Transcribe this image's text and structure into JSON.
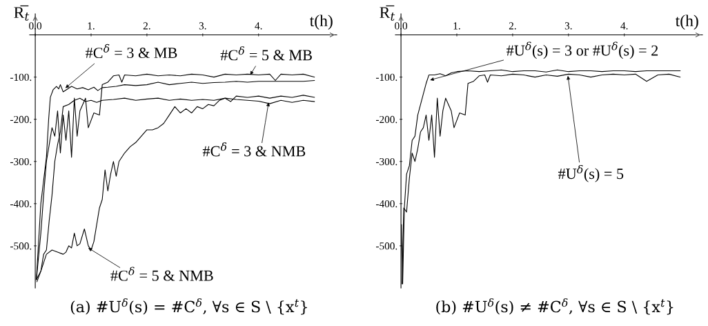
{
  "chart_data": [
    {
      "type": "line",
      "title": "(a) #U$^{δ}$(s) = #C$^{δ}$, ∀s ∈ S \\ {x$^{t}$}",
      "xlabel": "t(h)",
      "ylabel": "R̅$_{t}$",
      "xlim": [
        -0.1,
        5.4
      ],
      "ylim": [
        -600,
        50
      ],
      "xticks": [
        {
          "value": 0,
          "label": "0.0"
        },
        {
          "value": 1,
          "label": "1."
        },
        {
          "value": 2,
          "label": "2."
        },
        {
          "value": 3,
          "label": "3."
        },
        {
          "value": 4,
          "label": "4."
        }
      ],
      "yticks": [
        {
          "value": -100,
          "label": "-100."
        },
        {
          "value": -200,
          "label": "-200."
        },
        {
          "value": -300,
          "label": "-300."
        },
        {
          "value": -400,
          "label": "-400."
        },
        {
          "value": -500,
          "label": "-500."
        }
      ],
      "series": [
        {
          "color": "#000000",
          "x": [
            0.02,
            0.1,
            0.2,
            0.24,
            0.27,
            0.32,
            0.38,
            0.42,
            0.45,
            0.5,
            0.58,
            0.65,
            0.75,
            0.85,
            0.95,
            1.05,
            1.12,
            1.2,
            1.3,
            1.45,
            1.6,
            1.8,
            2.0,
            2.2,
            2.4,
            2.6,
            2.8,
            3.0,
            3.2,
            3.4,
            3.6,
            3.8,
            4.0,
            4.2,
            4.5,
            4.8,
            5.0
          ],
          "values": [
            -580,
            -400,
            -290,
            -200,
            -148,
            -130,
            -122,
            -128,
            -118,
            -135,
            -128,
            -122,
            -128,
            -125,
            -130,
            -124,
            -132,
            -125,
            -124,
            -122,
            -118,
            -120,
            -118,
            -112,
            -118,
            -115,
            -112,
            -115,
            -113,
            -112,
            -110,
            -112,
            -110,
            -110,
            -110,
            -110,
            -108
          ]
        },
        {
          "color": "#000000",
          "x": [
            0.02,
            0.1,
            0.15,
            0.2,
            0.25,
            0.3,
            0.35,
            0.4,
            0.45,
            0.5,
            0.55,
            0.6,
            0.65,
            0.7,
            0.75,
            0.8,
            0.9,
            0.95,
            1.05,
            1.15,
            1.2,
            1.3,
            1.4,
            1.5,
            1.55,
            1.6,
            1.8,
            2.0,
            2.2,
            2.4,
            2.6,
            2.8,
            3.0,
            3.2,
            3.4,
            3.6,
            3.8,
            4.0,
            4.2,
            4.3,
            4.4,
            4.6,
            4.8,
            5.0
          ],
          "values": [
            -580,
            -470,
            -380,
            -300,
            -260,
            -220,
            -240,
            -180,
            -280,
            -190,
            -250,
            -180,
            -290,
            -150,
            -240,
            -180,
            -150,
            -220,
            -185,
            -190,
            -118,
            -112,
            -97,
            -95,
            -112,
            -95,
            -97,
            -93,
            -97,
            -95,
            -97,
            -93,
            -95,
            -100,
            -93,
            -95,
            -93,
            -95,
            -93,
            -108,
            -93,
            -95,
            -93,
            -100
          ]
        },
        {
          "color": "#000000",
          "x": [
            0.02,
            0.1,
            0.15,
            0.2,
            0.25,
            0.3,
            0.35,
            0.4,
            0.45,
            0.5,
            0.6,
            0.7,
            0.8,
            0.9,
            1.0,
            1.1,
            1.2,
            1.4,
            1.6,
            1.8,
            2.0,
            2.2,
            2.4,
            2.6,
            2.8,
            3.0,
            3.2,
            3.4,
            3.6,
            3.8,
            4.0,
            4.2,
            4.4,
            4.6,
            4.8,
            5.0
          ],
          "values": [
            -580,
            -560,
            -520,
            -510,
            -440,
            -380,
            -300,
            -260,
            -230,
            -170,
            -165,
            -155,
            -150,
            -158,
            -155,
            -160,
            -155,
            -153,
            -150,
            -155,
            -152,
            -150,
            -155,
            -152,
            -155,
            -153,
            -155,
            -150,
            -153,
            -155,
            -157,
            -163,
            -155,
            -160,
            -155,
            -158
          ]
        },
        {
          "color": "#000000",
          "x": [
            0.03,
            0.1,
            0.2,
            0.3,
            0.4,
            0.5,
            0.55,
            0.6,
            0.65,
            0.7,
            0.75,
            0.8,
            0.88,
            0.95,
            1.0,
            1.05,
            1.1,
            1.15,
            1.2,
            1.25,
            1.3,
            1.35,
            1.4,
            1.45,
            1.5,
            1.6,
            1.7,
            1.8,
            1.9,
            2.0,
            2.1,
            2.2,
            2.3,
            2.4,
            2.5,
            2.6,
            2.7,
            2.8,
            2.9,
            3.0,
            3.1,
            3.2,
            3.3,
            3.4,
            3.5,
            3.6,
            3.8,
            4.0,
            4.2,
            4.4,
            4.6,
            4.8,
            5.0
          ],
          "values": [
            -585,
            -560,
            -520,
            -510,
            -515,
            -520,
            -515,
            -500,
            -505,
            -470,
            -500,
            -495,
            -460,
            -500,
            -510,
            -490,
            -450,
            -410,
            -390,
            -320,
            -370,
            -330,
            -300,
            -335,
            -300,
            -280,
            -265,
            -255,
            -240,
            -225,
            -225,
            -220,
            -210,
            -190,
            -170,
            -185,
            -175,
            -185,
            -170,
            -175,
            -165,
            -168,
            -155,
            -150,
            -158,
            -145,
            -148,
            -145,
            -150,
            -145,
            -148,
            -143,
            -148
          ]
        }
      ],
      "annotations": [
        {
          "text": "#C$^{δ}$ = 3 & MB",
          "x": 0.54,
          "y": -126
        },
        {
          "text": "#C$^{δ}$ = 5 & MB",
          "x": 3.85,
          "y": -95
        },
        {
          "text": "#C$^{δ}$ = 3 & NMB",
          "x": 4.18,
          "y": -160
        },
        {
          "text": "#C$^{δ}$ = 5 & NMB",
          "x": 0.95,
          "y": -505
        }
      ]
    },
    {
      "type": "line",
      "title": "(b) #U$^{δ}$(s) ≠ #C$^{δ}$, ∀s ∈ S \\ {x$^{t}$}",
      "xlabel": "t(h)",
      "ylabel": "R̅$_{t}$",
      "xlim": [
        -0.1,
        5.4
      ],
      "ylim": [
        -600,
        50
      ],
      "xticks": [
        {
          "value": 0,
          "label": "0.0"
        },
        {
          "value": 1,
          "label": "1."
        },
        {
          "value": 2,
          "label": "2."
        },
        {
          "value": 3,
          "label": "3."
        },
        {
          "value": 4,
          "label": "4."
        }
      ],
      "yticks": [
        {
          "value": -100,
          "label": "-100."
        },
        {
          "value": -200,
          "label": "-200."
        },
        {
          "value": -300,
          "label": "-300."
        },
        {
          "value": -400,
          "label": "-400."
        },
        {
          "value": -500,
          "label": "-500."
        }
      ],
      "series": [
        {
          "color": "#000000",
          "x": [
            0.01,
            0.03,
            0.06,
            0.1,
            0.15,
            0.2,
            0.25,
            0.3,
            0.35,
            0.4,
            0.45,
            0.5,
            0.6,
            0.7,
            0.8,
            0.9,
            1.0,
            1.2,
            1.4,
            1.6,
            1.8,
            2.0,
            2.2,
            2.4,
            2.6,
            2.8,
            3.0,
            3.2,
            3.4,
            3.6,
            3.8,
            4.0,
            4.2,
            4.4,
            4.6,
            4.8,
            5.0
          ],
          "values": [
            -450,
            -590,
            -410,
            -330,
            -310,
            -250,
            -240,
            -190,
            -165,
            -140,
            -115,
            -95,
            -95,
            -92,
            -97,
            -90,
            -87,
            -85,
            -87,
            -85,
            -83,
            -87,
            -85,
            -85,
            -88,
            -83,
            -87,
            -85,
            -85,
            -87,
            -85,
            -85,
            -87,
            -85,
            -85,
            -85,
            -85
          ]
        },
        {
          "color": "#000000",
          "x": [
            0.02,
            0.05,
            0.1,
            0.15,
            0.2,
            0.25,
            0.3,
            0.35,
            0.4,
            0.45,
            0.5,
            0.55,
            0.6,
            0.65,
            0.7,
            0.75,
            0.8,
            0.9,
            0.95,
            1.05,
            1.15,
            1.2,
            1.3,
            1.4,
            1.5,
            1.55,
            1.6,
            1.8,
            2.0,
            2.2,
            2.4,
            2.6,
            2.8,
            3.0,
            3.2,
            3.4,
            3.6,
            3.8,
            4.0,
            4.2,
            4.4,
            4.6,
            4.8,
            5.0
          ],
          "values": [
            -590,
            -410,
            -420,
            -340,
            -280,
            -300,
            -270,
            -230,
            -220,
            -190,
            -250,
            -190,
            -290,
            -150,
            -240,
            -180,
            -150,
            -180,
            -220,
            -185,
            -190,
            -115,
            -110,
            -97,
            -95,
            -112,
            -95,
            -97,
            -93,
            -95,
            -100,
            -95,
            -98,
            -93,
            -95,
            -100,
            -95,
            -93,
            -95,
            -93,
            -110,
            -95,
            -93,
            -100
          ]
        }
      ],
      "annotations": [
        {
          "text": "#U$^{δ}$(s) = 3 or #U$^{δ}$(s) = 2",
          "x": 0.52,
          "y": -107
        },
        {
          "text": "#U$^{δ}$(s) = 5",
          "x": 2.99,
          "y": -97
        }
      ]
    }
  ]
}
